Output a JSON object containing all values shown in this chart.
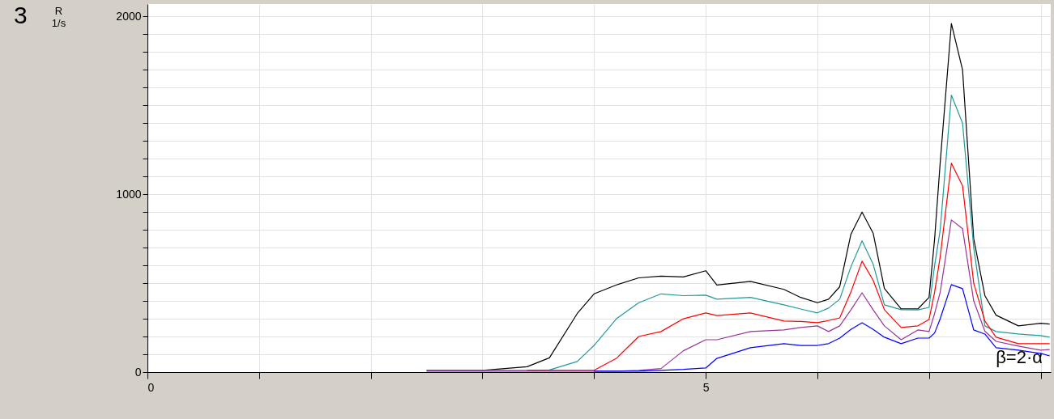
{
  "chart_data": {
    "type": "line",
    "ylabel": "R\n1/s",
    "annotations": [
      "3",
      "β=2·α"
    ],
    "x": [
      2.5,
      3.0,
      3.4,
      3.6,
      3.85,
      4.0,
      4.2,
      4.4,
      4.6,
      4.8,
      5.0,
      5.1,
      5.4,
      5.7,
      5.85,
      6.0,
      6.1,
      6.2,
      6.3,
      6.4,
      6.5,
      6.6,
      6.75,
      6.9,
      7.0,
      7.05,
      7.1,
      7.2,
      7.3,
      7.4,
      7.5,
      7.6,
      7.8,
      8.0,
      8.08
    ],
    "series": [
      {
        "color": "#000000",
        "values": [
          10,
          10,
          30,
          80,
          330,
          440,
          490,
          530,
          540,
          535,
          570,
          490,
          510,
          465,
          420,
          390,
          410,
          480,
          775,
          900,
          780,
          470,
          355,
          355,
          420,
          750,
          1180,
          1960,
          1700,
          750,
          430,
          320,
          260,
          275,
          270
        ]
      },
      {
        "color": "#229999",
        "values": [
          10,
          10,
          10,
          12,
          60,
          150,
          300,
          390,
          440,
          430,
          433,
          410,
          420,
          378,
          355,
          333,
          360,
          410,
          592,
          738,
          606,
          378,
          351,
          350,
          364,
          600,
          800,
          1558,
          1400,
          700,
          260,
          228,
          214,
          205,
          196
        ]
      },
      {
        "color": "#ff0000",
        "values": [
          null,
          null,
          10,
          10,
          10,
          10,
          77,
          200,
          228,
          300,
          333,
          318,
          333,
          287,
          285,
          278,
          290,
          305,
          450,
          624,
          515,
          351,
          251,
          260,
          296,
          450,
          650,
          1175,
          1048,
          500,
          287,
          196,
          160,
          160,
          160
        ]
      },
      {
        "color": "#993399",
        "values": [
          5,
          5,
          5,
          5,
          5,
          5,
          5,
          10,
          20,
          120,
          182,
          182,
          228,
          237,
          251,
          260,
          228,
          260,
          350,
          446,
          350,
          260,
          182,
          237,
          228,
          330,
          450,
          856,
          806,
          400,
          230,
          173,
          146,
          123,
          127
        ]
      },
      {
        "color": "#0000ff",
        "values": [
          null,
          null,
          null,
          null,
          null,
          5,
          5,
          5,
          10,
          15,
          23,
          77,
          137,
          160,
          150,
          150,
          160,
          191,
          240,
          278,
          240,
          196,
          160,
          191,
          191,
          220,
          300,
          492,
          469,
          237,
          214,
          137,
          123,
          105,
          91
        ]
      }
    ],
    "xlim": [
      0,
      8.09
    ],
    "ylim": [
      0,
      2070
    ],
    "xticks": [
      0,
      {
        "value": 1,
        "label": null
      },
      {
        "value": 2,
        "label": null
      },
      {
        "value": 3,
        "label": null
      },
      {
        "value": 4,
        "label": null
      },
      5,
      {
        "value": 6,
        "label": null
      },
      {
        "value": 7,
        "label": null
      },
      {
        "value": 8,
        "label": null
      }
    ],
    "yticks": [
      0,
      {
        "value": 100,
        "label": null
      },
      {
        "value": 200,
        "label": null
      },
      {
        "value": 300,
        "label": null
      },
      {
        "value": 400,
        "label": null
      },
      {
        "value": 500,
        "label": null
      },
      {
        "value": 600,
        "label": null
      },
      {
        "value": 700,
        "label": null
      },
      {
        "value": 800,
        "label": null
      },
      {
        "value": 900,
        "label": null
      },
      1000,
      {
        "value": 1100,
        "label": null
      },
      {
        "value": 1200,
        "label": null
      },
      {
        "value": 1300,
        "label": null
      },
      {
        "value": 1400,
        "label": null
      },
      {
        "value": 1500,
        "label": null
      },
      {
        "value": 1600,
        "label": null
      },
      {
        "value": 1700,
        "label": null
      },
      {
        "value": 1800,
        "label": null
      },
      {
        "value": 1900,
        "label": null
      },
      2000
    ],
    "grid": true,
    "marker": "none",
    "line_style": "solid"
  }
}
